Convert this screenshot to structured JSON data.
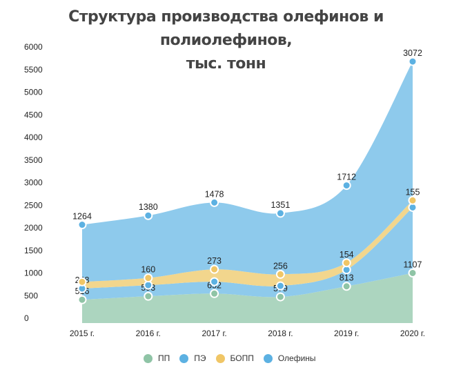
{
  "chart_data": {
    "type": "area",
    "stacked": true,
    "title": "Структура производства олефинов и полиолефинов, тыс. тонн",
    "title_lines": [
      "Структура производства олефинов и полиолефинов,",
      "тыс. тонн"
    ],
    "categories": [
      "2015 г.",
      "2016 г.",
      "2017 г.",
      "2018 г.",
      "2019 г.",
      "2020 г."
    ],
    "ylim": [
      0,
      6000
    ],
    "yticks": [
      "0",
      "500",
      "1000",
      "1500",
      "2000",
      "2500",
      "3000",
      "3500",
      "4000",
      "4500",
      "5000",
      "5500",
      "6000"
    ],
    "grid": false,
    "legend_position": "bottom",
    "series": [
      {
        "name": "ПП",
        "values": [
          516,
          593,
          652,
          579,
          813,
          1107
        ],
        "labels": [
          "516",
          "593",
          "652",
          "579",
          "813",
          "1107"
        ],
        "fill": "#acd5bf",
        "point": "#8fc4a6"
      },
      {
        "name": "ПЭ",
        "values": [
          248,
          245,
          263,
          243,
          365,
          1451
        ],
        "labels": [
          "248",
          null,
          null,
          null,
          null,
          null
        ],
        "fill": "#8ecaec",
        "point": "#5cb1e2"
      },
      {
        "name": "БОПП",
        "values": [
          147,
          160,
          273,
          256,
          154,
          155
        ],
        "labels": [
          null,
          "160",
          "273",
          "256",
          "154",
          "155"
        ],
        "fill": "#f2d68d",
        "point": "#f0c666"
      },
      {
        "name": "Олефины",
        "values": [
          1264,
          1380,
          1478,
          1351,
          1712,
          3072
        ],
        "labels": [
          "1264",
          "1380",
          "1478",
          "1351",
          "1712",
          "3072"
        ],
        "fill": "#8ecaec",
        "point": "#5cb1e2"
      }
    ]
  }
}
